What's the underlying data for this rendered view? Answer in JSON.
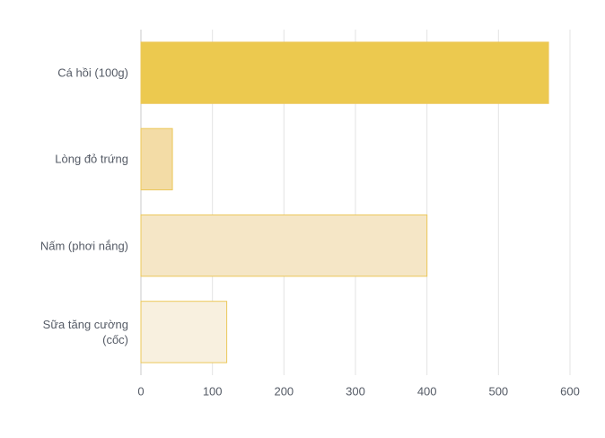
{
  "chart_data": {
    "type": "bar",
    "orientation": "horizontal",
    "categories": [
      "Cá hồi (100g)",
      "Lòng đỏ trứng",
      "Nấm (phơi nắng)",
      "Sữa tăng cường (cốc)"
    ],
    "values": [
      570,
      44,
      400,
      120
    ],
    "colors": [
      "#ecc94f",
      "#f3dca6",
      "#f5e6c6",
      "#f8f0df"
    ],
    "border_color": "#ecc85a",
    "xlim": [
      0,
      600
    ],
    "xticks": [
      0,
      100,
      200,
      300,
      400,
      500,
      600
    ],
    "grid": true
  }
}
